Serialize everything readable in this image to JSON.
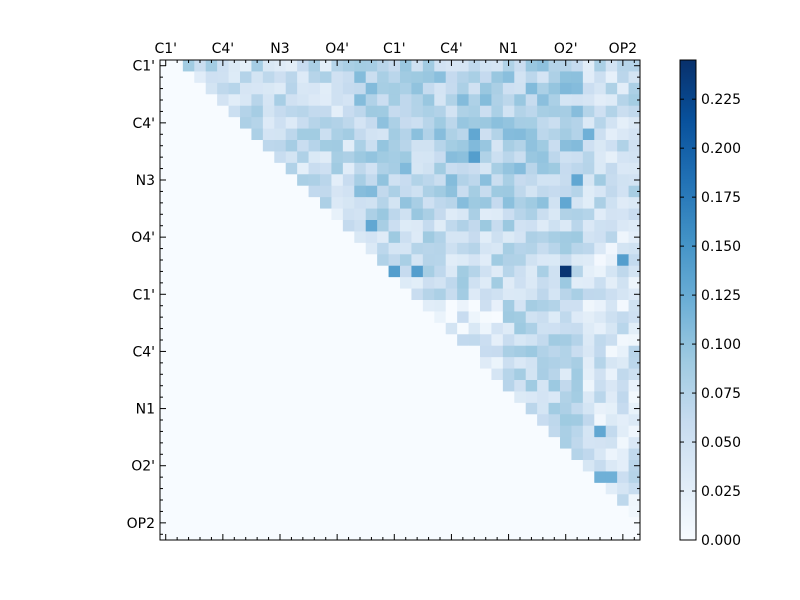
{
  "chart_data": {
    "type": "heatmap",
    "title": "",
    "xlabel": "",
    "ylabel": "",
    "grid": false,
    "n_rows": 42,
    "n_cols": 42,
    "colormap": "Blues",
    "colormap_stops": [
      "#f7fbff",
      "#deebf7",
      "#c6dbef",
      "#9ecae1",
      "#6baed6",
      "#4292c6",
      "#2171b5",
      "#08519c",
      "#08306b"
    ],
    "value_range": [
      0.0,
      0.245
    ],
    "x_tick_labels": [
      "C1'",
      "C4'",
      "N3",
      "O4'",
      "C1'",
      "C4'",
      "N1",
      "O2'",
      "OP2"
    ],
    "y_tick_labels": [
      "C1'",
      "C4'",
      "N3",
      "O4'",
      "C1'",
      "C4'",
      "N1",
      "O2'",
      "OP2"
    ],
    "label_indices": [
      0,
      5,
      10,
      15,
      20,
      25,
      30,
      35,
      40
    ],
    "colorbar": {
      "ticks": [
        0.0,
        0.025,
        0.05,
        0.075,
        0.1,
        0.125,
        0.15,
        0.175,
        0.2,
        0.225
      ],
      "tick_labels": [
        "0.000",
        "0.025",
        "0.050",
        "0.075",
        "0.100",
        "0.125",
        "0.150",
        "0.175",
        "0.200",
        "0.225"
      ]
    },
    "highlighted_cells": [
      {
        "row": 18,
        "col": 35,
        "value": 0.24
      },
      {
        "row": 18,
        "col": 20,
        "value": 0.14
      },
      {
        "row": 18,
        "col": 22,
        "value": 0.14
      },
      {
        "row": 8,
        "col": 27,
        "value": 0.14
      },
      {
        "row": 6,
        "col": 27,
        "value": 0.13
      },
      {
        "row": 14,
        "col": 18,
        "value": 0.13
      },
      {
        "row": 10,
        "col": 36,
        "value": 0.13
      },
      {
        "row": 12,
        "col": 35,
        "value": 0.13
      },
      {
        "row": 17,
        "col": 40,
        "value": 0.14
      },
      {
        "row": 32,
        "col": 38,
        "value": 0.13
      },
      {
        "row": 36,
        "col": 38,
        "value": 0.12
      },
      {
        "row": 36,
        "col": 39,
        "value": 0.12
      },
      {
        "row": 6,
        "col": 37,
        "value": 0.12
      },
      {
        "row": 2,
        "col": 35,
        "value": 0.11
      }
    ]
  }
}
